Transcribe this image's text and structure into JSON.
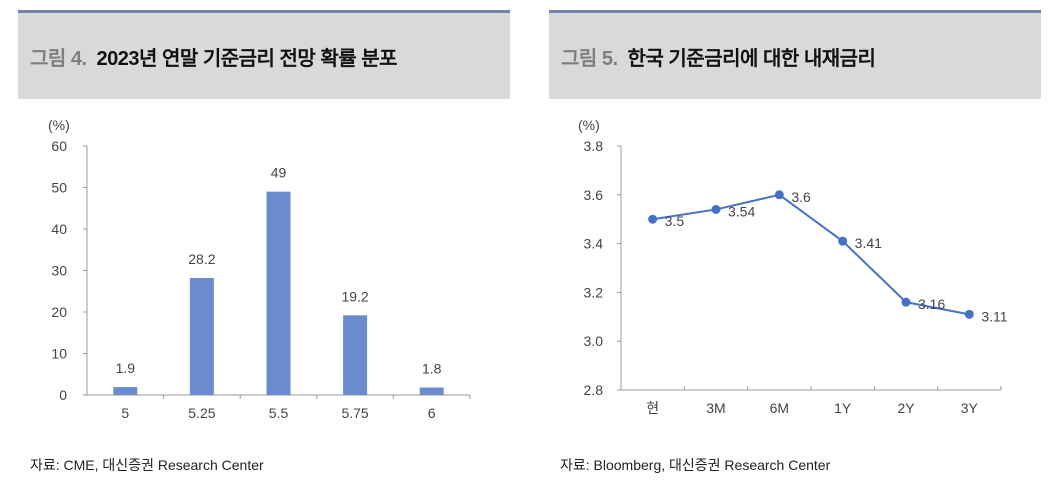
{
  "chart_data": [
    {
      "type": "bar",
      "figure": "그림 4.",
      "title": "2023년 연말 기준금리 전망 확률 분포",
      "ylabel": "(%)",
      "categories": [
        "5",
        "5.25",
        "5.5",
        "5.75",
        "6"
      ],
      "values": [
        1.9,
        28.2,
        49,
        19.2,
        1.8
      ],
      "ylim": [
        0,
        60
      ],
      "yticks": [
        0,
        10,
        20,
        30,
        40,
        50,
        60
      ],
      "color": "#6a8ccf",
      "source": "자료: CME, 대신증권 Research Center"
    },
    {
      "type": "line",
      "figure": "그림 5.",
      "title": "한국 기준금리에 대한 내재금리",
      "ylabel": "(%)",
      "categories": [
        "현",
        "3M",
        "6M",
        "1Y",
        "2Y",
        "3Y"
      ],
      "values": [
        3.5,
        3.54,
        3.6,
        3.41,
        3.16,
        3.11
      ],
      "labels": [
        "3.5",
        "3.54",
        "3.6",
        "3.41",
        "3.16",
        "3.11"
      ],
      "ylim": [
        2.8,
        3.8
      ],
      "yticks": [
        "2.8",
        "3.0",
        "3.2",
        "3.4",
        "3.6",
        "3.8"
      ],
      "color": "#4472c4",
      "source": "자료: Bloomberg, 대신증권 Research Center"
    }
  ]
}
